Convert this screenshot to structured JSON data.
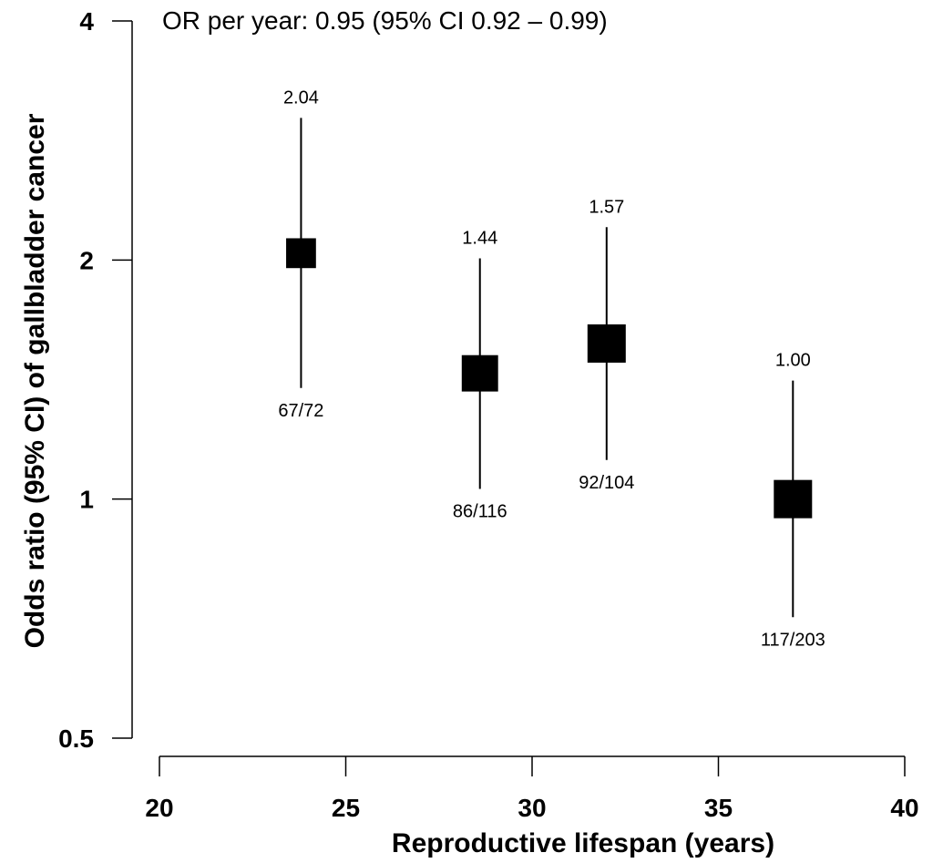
{
  "chart_data": {
    "type": "scatter",
    "subtype": "odds-ratio plot with confidence intervals",
    "annotation": "OR per year: 0.95 (95% CI 0.92 – 0.99)",
    "xlabel": "Reproductive lifespan (years)",
    "ylabel": "Odds ratio (95% CI) of gallbladder cancer",
    "xlim": [
      20,
      40
    ],
    "ylim": [
      0.5,
      4
    ],
    "y_scale": "log",
    "x_ticks": [
      20,
      25,
      30,
      35,
      40
    ],
    "y_ticks": [
      0.5,
      1,
      2,
      4
    ],
    "y_tick_labels": [
      "0.5",
      "1",
      "2",
      "4"
    ],
    "grid": false,
    "points": [
      {
        "x": 23.8,
        "or": 2.04,
        "ci_low": 1.38,
        "ci_high": 3.02,
        "cases": "67/72",
        "relative_size": 0.78
      },
      {
        "x": 28.6,
        "or": 1.44,
        "ci_low": 1.03,
        "ci_high": 2.01,
        "cases": "86/116",
        "relative_size": 0.95
      },
      {
        "x": 32.0,
        "or": 1.57,
        "ci_low": 1.12,
        "ci_high": 2.2,
        "cases": "92/104",
        "relative_size": 1.0
      },
      {
        "x": 37.0,
        "or": 1.0,
        "ci_low": 0.71,
        "ci_high": 1.41,
        "cases": "117/203",
        "relative_size": 1.0
      }
    ]
  }
}
